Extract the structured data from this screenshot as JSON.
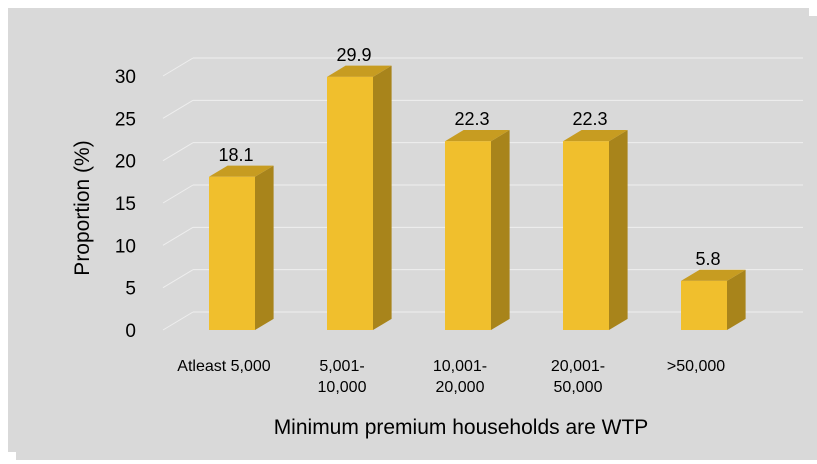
{
  "chart_data": {
    "type": "bar",
    "style": "3d-column",
    "categories": [
      [
        "Atleast 5,000"
      ],
      [
        "5,001-",
        "10,000"
      ],
      [
        "10,001-",
        "20,000"
      ],
      [
        "20,001-",
        "50,000"
      ],
      [
        ">50,000"
      ]
    ],
    "values": [
      18.1,
      29.9,
      22.3,
      22.3,
      5.8
    ],
    "data_labels": [
      "18.1",
      "29.9",
      "22.3",
      "22.3",
      "5.8"
    ],
    "xlabel": "Minimum premium households are WTP",
    "ylabel": "Proportion (%)",
    "ylim": [
      0,
      30
    ],
    "yticks": [
      0,
      5,
      10,
      15,
      20,
      25,
      30
    ],
    "grid": true,
    "legend": "none",
    "colors": {
      "bar_front": "#f0bf2d",
      "bar_side": "#a8841b",
      "bar_top": "#c79c21",
      "background": "#d9d9d9",
      "gridline": "#eeeeee"
    }
  }
}
